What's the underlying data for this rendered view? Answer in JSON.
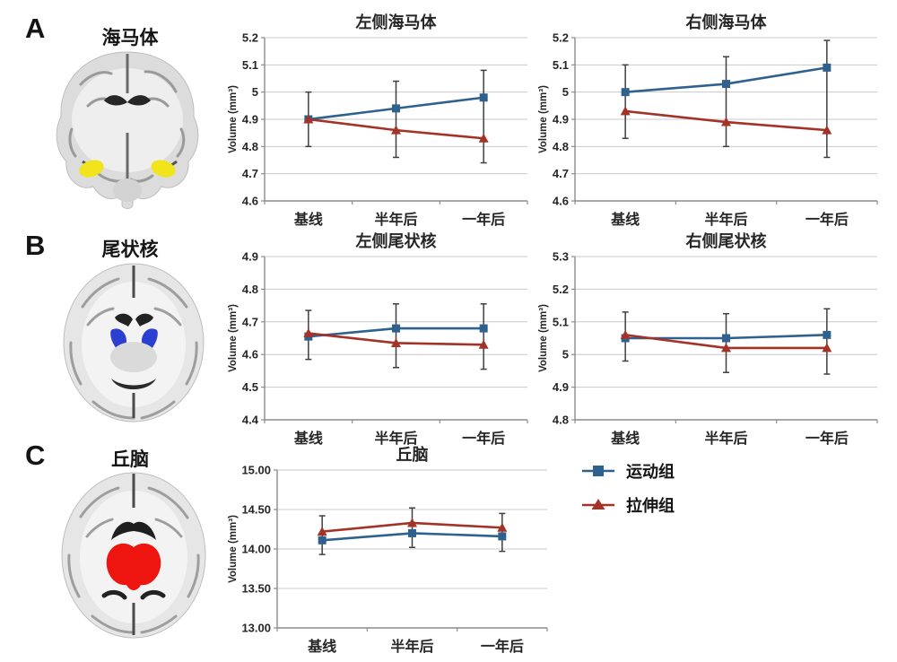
{
  "figure": {
    "style": {
      "text": "#262626",
      "grid": "#c9c9c9",
      "axis": "#8c8c8c",
      "error_bar": "#3f3f3f",
      "background": "#ffffff",
      "exercise_color": "#2F618E",
      "stretch_color": "#A33227"
    },
    "panels": [
      {
        "letter": "A",
        "region_label": "海马体",
        "slice": "coronal",
        "highlight_color": "#f2e41c"
      },
      {
        "letter": "B",
        "region_label": "尾状核",
        "slice": "axial",
        "highlight_color": "#2b3fd0"
      },
      {
        "letter": "C",
        "region_label": "丘脑",
        "slice": "axial",
        "highlight_color": "#ee1510"
      }
    ],
    "legend": {
      "items": [
        {
          "label": "运动组",
          "color": "#2F618E",
          "marker": "square"
        },
        {
          "label": "拉伸组",
          "color": "#A33227",
          "marker": "triangle"
        }
      ]
    }
  },
  "chart_data": [
    {
      "type": "line",
      "panel": "A",
      "title": "左侧海马体",
      "ylabel": "Volume (mm³)",
      "categories": [
        "基线",
        "半年后",
        "一年后"
      ],
      "ylim": [
        4.6,
        5.2
      ],
      "ytick_values": [
        5.2,
        5.1,
        5.0,
        4.9,
        4.8,
        4.7,
        4.6
      ],
      "ytick_labels": [
        "5.2",
        "5.1",
        "5",
        "4.9",
        "4.8",
        "4.7",
        "4.6"
      ],
      "grid": true,
      "series": [
        {
          "name": "运动组",
          "color": "#2F618E",
          "marker": "square",
          "values": [
            4.9,
            4.94,
            4.98
          ],
          "errors": [
            0.1,
            0.1,
            0.1
          ]
        },
        {
          "name": "拉伸组",
          "color": "#A33227",
          "marker": "triangle",
          "values": [
            4.9,
            4.86,
            4.83
          ],
          "errors": [
            0.1,
            0.1,
            0.09
          ]
        }
      ]
    },
    {
      "type": "line",
      "panel": "A",
      "title": "右侧海马体",
      "ylabel": "Volume (mm³)",
      "categories": [
        "基线",
        "半年后",
        "一年后"
      ],
      "ylim": [
        4.6,
        5.2
      ],
      "ytick_values": [
        5.2,
        5.1,
        5.0,
        4.9,
        4.8,
        4.7,
        4.6
      ],
      "ytick_labels": [
        "5.2",
        "5.1",
        "5",
        "4.9",
        "4.8",
        "4.7",
        "4.6"
      ],
      "grid": true,
      "series": [
        {
          "name": "运动组",
          "color": "#2F618E",
          "marker": "square",
          "values": [
            5.0,
            5.03,
            5.09
          ],
          "errors": [
            0.1,
            0.1,
            0.1
          ]
        },
        {
          "name": "拉伸组",
          "color": "#A33227",
          "marker": "triangle",
          "values": [
            4.93,
            4.89,
            4.86
          ],
          "errors": [
            0.1,
            0.09,
            0.1
          ]
        }
      ]
    },
    {
      "type": "line",
      "panel": "B",
      "title": "左侧尾状核",
      "ylabel": "Volume (mm³)",
      "categories": [
        "基线",
        "半年后",
        "一年后"
      ],
      "ylim": [
        4.4,
        4.9
      ],
      "ytick_values": [
        4.9,
        4.8,
        4.7,
        4.6,
        4.5,
        4.4
      ],
      "ytick_labels": [
        "4.9",
        "4.8",
        "4.7",
        "4.6",
        "4.5",
        "4.4"
      ],
      "grid": true,
      "series": [
        {
          "name": "运动组",
          "color": "#2F618E",
          "marker": "square",
          "values": [
            4.655,
            4.68,
            4.68
          ],
          "errors": [
            0.07,
            0.075,
            0.075
          ]
        },
        {
          "name": "拉伸组",
          "color": "#A33227",
          "marker": "triangle",
          "values": [
            4.665,
            4.635,
            4.63
          ],
          "errors": [
            0.07,
            0.075,
            0.075
          ]
        }
      ]
    },
    {
      "type": "line",
      "panel": "B",
      "title": "右侧尾状核",
      "ylabel": "Volume (mm³)",
      "categories": [
        "基线",
        "半年后",
        "一年后"
      ],
      "ylim": [
        4.8,
        5.3
      ],
      "ytick_values": [
        5.3,
        5.2,
        5.1,
        5.0,
        4.9,
        4.8
      ],
      "ytick_labels": [
        "5.3",
        "5.2",
        "5.1",
        "5",
        "4.9",
        "4.8"
      ],
      "grid": true,
      "series": [
        {
          "name": "运动组",
          "color": "#2F618E",
          "marker": "square",
          "values": [
            5.05,
            5.05,
            5.06
          ],
          "errors": [
            0.07,
            0.075,
            0.08
          ]
        },
        {
          "name": "拉伸组",
          "color": "#A33227",
          "marker": "triangle",
          "values": [
            5.06,
            5.02,
            5.02
          ],
          "errors": [
            0.07,
            0.075,
            0.08
          ]
        }
      ]
    },
    {
      "type": "line",
      "panel": "C",
      "title": "丘脑",
      "ylabel": "Volume (mm³)",
      "categories": [
        "基线",
        "半年后",
        "一年后"
      ],
      "ylim": [
        13.0,
        15.0
      ],
      "ytick_values": [
        15.0,
        14.5,
        14.0,
        13.5,
        13.0
      ],
      "ytick_labels": [
        "15.00",
        "14.50",
        "14.00",
        "13.50",
        "13.00"
      ],
      "grid": true,
      "series": [
        {
          "name": "运动组",
          "color": "#2F618E",
          "marker": "square",
          "values": [
            14.11,
            14.2,
            14.16
          ],
          "errors": [
            0.18,
            0.18,
            0.19
          ]
        },
        {
          "name": "拉伸组",
          "color": "#A33227",
          "marker": "triangle",
          "values": [
            14.22,
            14.33,
            14.27
          ],
          "errors": [
            0.2,
            0.19,
            0.18
          ]
        }
      ]
    }
  ]
}
